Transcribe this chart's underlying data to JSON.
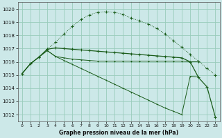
{
  "title": "Graphe pression niveau de la mer (hPa)",
  "bg_color": "#cce8e8",
  "grid_color": "#99ccbb",
  "line_color": "#1a5c1a",
  "xlim": [
    -0.5,
    23.5
  ],
  "ylim": [
    1011.5,
    1020.5
  ],
  "yticks": [
    1012,
    1013,
    1014,
    1015,
    1016,
    1017,
    1018,
    1019,
    1020
  ],
  "xticks": [
    0,
    1,
    2,
    3,
    4,
    5,
    6,
    7,
    8,
    9,
    10,
    11,
    12,
    13,
    14,
    15,
    16,
    17,
    18,
    19,
    20,
    21,
    22,
    23
  ],
  "line_bell": [
    1015.1,
    1015.85,
    1016.35,
    1016.95,
    1017.5,
    1018.1,
    1018.7,
    1019.2,
    1019.55,
    1019.75,
    1019.8,
    1019.75,
    1019.6,
    1019.3,
    1019.1,
    1018.85,
    1018.55,
    1018.1,
    1017.6,
    1017.1,
    1016.55,
    1016.05,
    1015.5,
    1015.0
  ],
  "line_drop": [
    1015.1,
    1015.85,
    1016.35,
    1016.95,
    1017.05,
    1017.0,
    1016.95,
    1016.9,
    1016.85,
    1016.8,
    1016.75,
    1016.7,
    1016.65,
    1016.6,
    1016.55,
    1016.5,
    1016.45,
    1016.4,
    1016.35,
    1016.3,
    1016.0,
    1014.8,
    1014.1,
    1011.8
  ],
  "line_flat": [
    1015.1,
    1015.85,
    1016.35,
    1016.85,
    1016.4,
    1016.3,
    1016.2,
    1016.15,
    1016.1,
    1016.05,
    1016.05,
    1016.05,
    1016.05,
    1016.05,
    1016.05,
    1016.05,
    1016.05,
    1016.05,
    1016.05,
    1016.05,
    1016.0,
    1016.0
  ],
  "line_diag": [
    1015.1,
    1015.85,
    1016.35,
    1016.85,
    1016.4,
    1016.1,
    1015.8,
    1015.5,
    1015.2,
    1014.9,
    1014.6,
    1014.3,
    1014.0,
    1013.7,
    1013.4,
    1013.1,
    1012.8,
    1012.5,
    1012.25,
    1012.0,
    1014.9,
    1014.85
  ]
}
